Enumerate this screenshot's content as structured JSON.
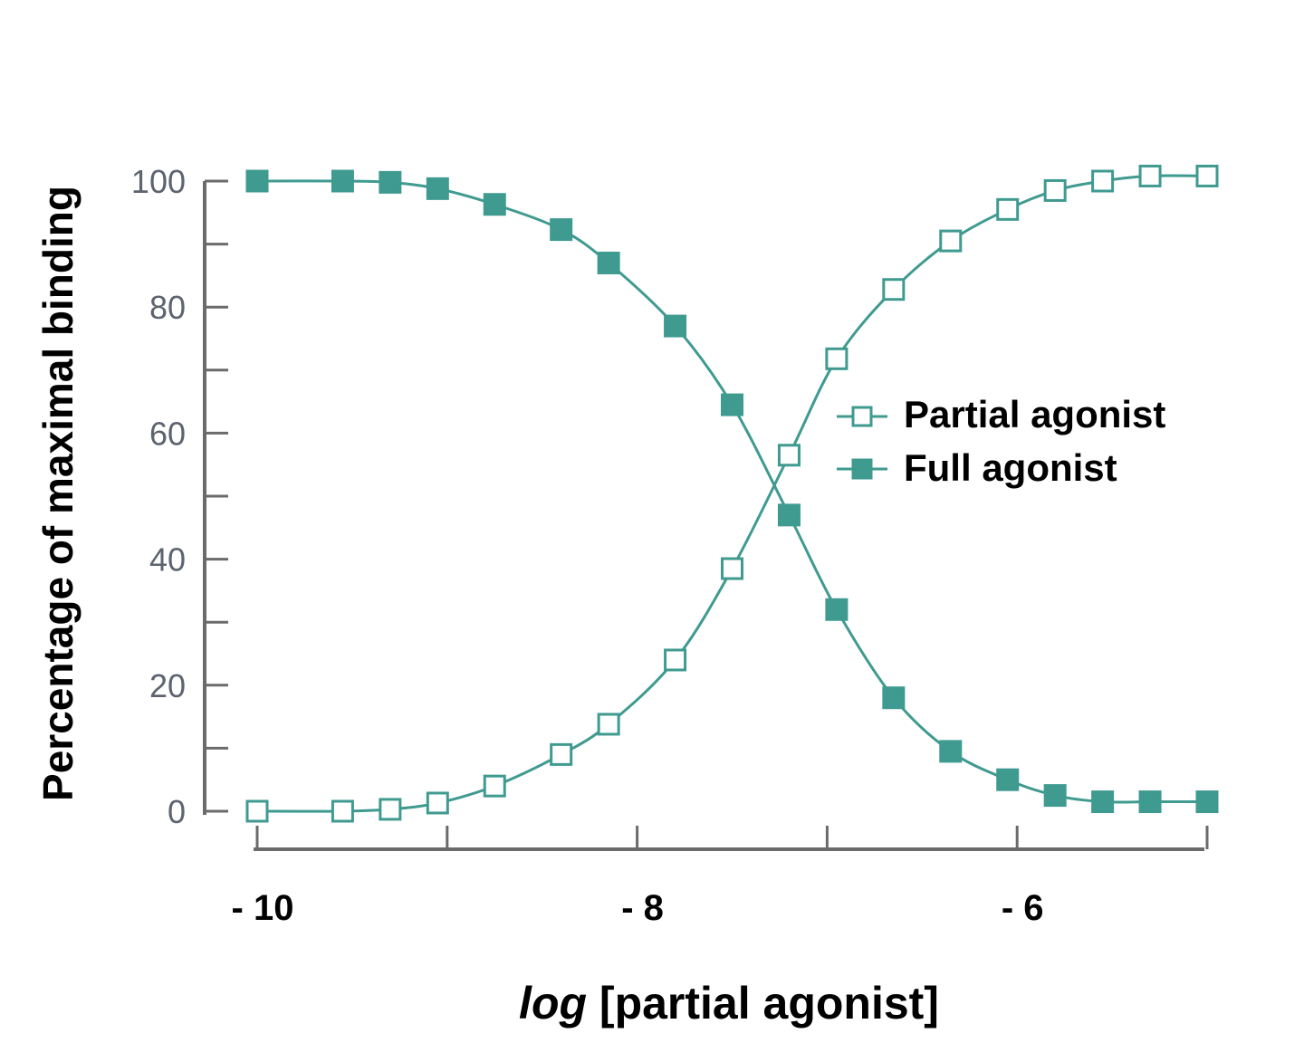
{
  "chart_data": {
    "type": "line",
    "title": "",
    "xlabel_italic": "log",
    "xlabel_rest": " [partial agonist]",
    "ylabel": "Percentage of maximal binding",
    "ylim": [
      0,
      100
    ],
    "xlim": [
      -10,
      -5
    ],
    "yticks": [
      "0",
      "20",
      "40",
      "60",
      "80",
      "100"
    ],
    "xticks": [
      {
        "value": -10,
        "label": "- 10"
      },
      {
        "value": -8,
        "label": "- 8"
      },
      {
        "value": -6,
        "label": "- 6"
      }
    ],
    "legend_position": "right",
    "series": [
      {
        "name": "Partial agonist",
        "marker": "open-square",
        "color": "#3f9a90",
        "points": [
          [
            -10.0,
            0.0
          ],
          [
            -9.55,
            0.0
          ],
          [
            -9.3,
            0.3
          ],
          [
            -9.05,
            1.3
          ],
          [
            -8.75,
            4.0
          ],
          [
            -8.4,
            9.0
          ],
          [
            -8.15,
            13.8
          ],
          [
            -7.8,
            24.0
          ],
          [
            -7.5,
            38.5
          ],
          [
            -7.2,
            56.5
          ],
          [
            -6.95,
            71.8
          ],
          [
            -6.65,
            82.8
          ],
          [
            -6.35,
            90.5
          ],
          [
            -6.05,
            95.5
          ],
          [
            -5.8,
            98.5
          ],
          [
            -5.55,
            100.0
          ],
          [
            -5.3,
            100.8
          ],
          [
            -5.0,
            100.8
          ]
        ]
      },
      {
        "name": "Full agonist",
        "marker": "filled-square",
        "color": "#3f9a90",
        "points": [
          [
            -10.0,
            100.0
          ],
          [
            -9.55,
            100.0
          ],
          [
            -9.3,
            99.8
          ],
          [
            -9.05,
            98.8
          ],
          [
            -8.75,
            96.3
          ],
          [
            -8.4,
            92.3
          ],
          [
            -8.15,
            87.0
          ],
          [
            -7.8,
            77.0
          ],
          [
            -7.5,
            64.5
          ],
          [
            -7.2,
            47.0
          ],
          [
            -6.95,
            32.0
          ],
          [
            -6.65,
            18.0
          ],
          [
            -6.35,
            9.5
          ],
          [
            -6.05,
            5.0
          ],
          [
            -5.8,
            2.5
          ],
          [
            -5.55,
            1.5
          ],
          [
            -5.3,
            1.5
          ],
          [
            -5.0,
            1.5
          ]
        ]
      }
    ]
  }
}
